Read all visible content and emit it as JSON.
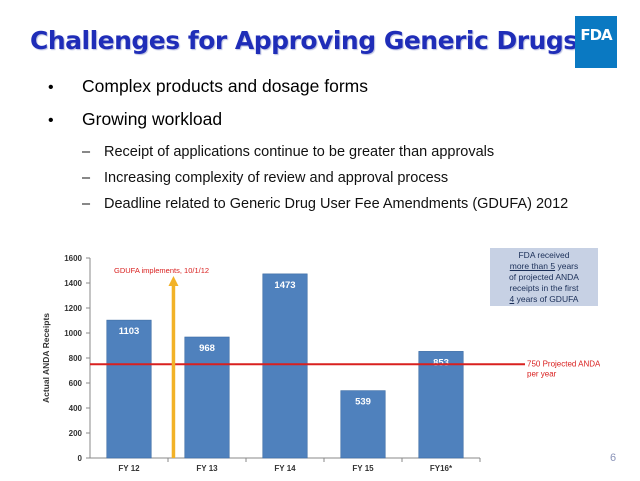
{
  "slide": {
    "title": "Challenges for Approving Generic Drugs",
    "logo": "FDA",
    "page_number": "6",
    "bullets": [
      "Complex products and dosage forms",
      "Growing workload"
    ],
    "sub_bullets": [
      "Receipt of applications continue to be greater than approvals",
      "Increasing complexity of review and approval process",
      "Deadline related to Generic Drug User Fee Amendments (GDUFA) 2012"
    ],
    "info_box": {
      "line1": "FDA received",
      "line2_prefix": "",
      "line2_underlined": "more than 5",
      "line2_suffix": " years",
      "line3": "of projected ANDA",
      "line4": "receipts in the first",
      "line5_underlined": "4",
      "line5_suffix": " years of GDUFA"
    }
  },
  "chart_data": {
    "type": "bar",
    "categories": [
      "FY 12",
      "FY 13",
      "FY 14",
      "FY 15",
      "FY16*"
    ],
    "values": [
      1103,
      968,
      1473,
      539,
      853
    ],
    "ylabel": "Actual ANDA Receipts",
    "xlabel": "",
    "ylim": [
      0,
      1600
    ],
    "yticks": [
      0,
      200,
      400,
      600,
      800,
      1000,
      1200,
      1400,
      1600
    ],
    "grid": false,
    "colors": {
      "bar": "#4f81bd",
      "reference_line": "#d9201f",
      "arrow": "#f2b227",
      "annotation_text": "#d9201f"
    },
    "reference_line": {
      "value": 750,
      "label_line1": "750 Projected ANDAs",
      "label_line2": "per year"
    },
    "annotation": {
      "label": "GDUFA implements, 10/1/12",
      "position_between": [
        "FY 12",
        "FY 13"
      ]
    }
  }
}
